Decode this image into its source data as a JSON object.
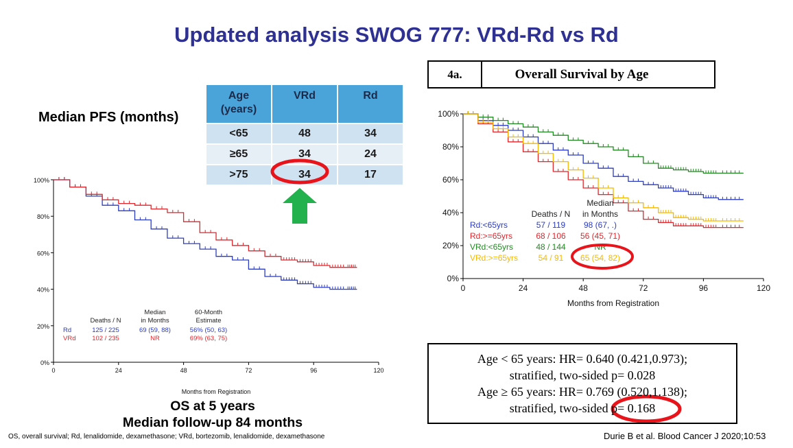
{
  "title": "Updated analysis SWOG 777: VRd-Rd vs Rd",
  "pfs_label": "Median PFS (months)",
  "pfs_table": {
    "headers": [
      "Age (years)",
      "VRd",
      "Rd"
    ],
    "rows": [
      [
        "<65",
        "48",
        "34"
      ],
      [
        "≥65",
        "34",
        "24"
      ],
      [
        ">75",
        "34",
        "17"
      ]
    ]
  },
  "os_caption": [
    "OS at 5 years",
    "Median follow-up 84 months"
  ],
  "footnote": "OS, overall survival; Rd, lenalidomide, dexamethasone; VRd, bortezomib, lenalidomide, dexamethasone",
  "citation": "Durie B et al. Blood Cancer J 2020;10:53",
  "fig_label": {
    "number": "4a.",
    "title": "Overall Survival by Age"
  },
  "hr_box": [
    "Age < 65 years:  HR=  0.640 (0.421,0.973);",
    "stratified, two-sided p= 0.028",
    "Age ≥ 65 years:  HR=  0.769 (0.520,1.138);",
    "stratified, two-sided p= 0.168"
  ],
  "colors": {
    "title": "#2e3192",
    "rd_blue": "#2b3bbf",
    "vrd_red": "#e0252b",
    "green": "#1f8a1f",
    "orange": "#f5b800",
    "arrow": "#22b14c",
    "highlight": "#e8141b"
  },
  "chart_data": [
    {
      "type": "line",
      "xlabel": "Months from Registration",
      "ylabel": "",
      "xlim": [
        0,
        120
      ],
      "ylim": [
        0,
        100
      ],
      "xticks": [
        "0",
        "24",
        "48",
        "72",
        "96",
        "120"
      ],
      "yticks": [
        "0%",
        "20%",
        "40%",
        "60%",
        "80%",
        "100%"
      ],
      "series": [
        {
          "name": "Rd",
          "color": "#2b3bbf",
          "x": [
            0,
            6,
            12,
            18,
            24,
            30,
            36,
            42,
            48,
            54,
            60,
            66,
            72,
            78,
            84,
            90,
            96,
            102,
            108,
            112
          ],
          "y": [
            100,
            96,
            91,
            86,
            83,
            78,
            73,
            68,
            65,
            62,
            58,
            56,
            51,
            47,
            45,
            43,
            41,
            40,
            40,
            40
          ]
        },
        {
          "name": "VRd",
          "color": "#e0252b",
          "x": [
            0,
            6,
            12,
            18,
            24,
            30,
            36,
            42,
            48,
            54,
            60,
            66,
            72,
            78,
            84,
            90,
            96,
            102,
            108,
            112
          ],
          "y": [
            100,
            96,
            92,
            89,
            87,
            86,
            84,
            82,
            77,
            71,
            67,
            64,
            61,
            58,
            56,
            55,
            53,
            52,
            52,
            52
          ]
        }
      ],
      "legend_table": {
        "headers": [
          "Deaths / N",
          "Median in Months",
          "60-Month Estimate"
        ],
        "header_lines": [
          [
            "Deaths / N"
          ],
          [
            "Median",
            "in Months"
          ],
          [
            "60-Month",
            "Estimate"
          ]
        ],
        "rows": [
          {
            "name": "Rd",
            "deaths": "125 / 225",
            "median": "69 (59, 88)",
            "estimate": "56% (50, 63)"
          },
          {
            "name": "VRd",
            "deaths": "102 / 235",
            "median": "NR",
            "estimate": "69% (63, 75)"
          }
        ]
      }
    },
    {
      "type": "line",
      "xlabel": "Months from Registration",
      "ylabel": "",
      "xlim": [
        0,
        120
      ],
      "ylim": [
        0,
        100
      ],
      "xticks": [
        "0",
        "24",
        "48",
        "72",
        "96",
        "120"
      ],
      "yticks": [
        "0%",
        "20%",
        "40%",
        "60%",
        "80%",
        "100%"
      ],
      "series": [
        {
          "name": "Rd:<65yrs",
          "color": "#2b3bbf",
          "x": [
            0,
            6,
            12,
            18,
            24,
            30,
            36,
            42,
            48,
            54,
            60,
            66,
            72,
            78,
            84,
            90,
            96,
            102,
            112
          ],
          "y": [
            100,
            96,
            93,
            90,
            86,
            82,
            78,
            75,
            70,
            67,
            62,
            59,
            57,
            55,
            53,
            51,
            49,
            48,
            48
          ]
        },
        {
          "name": "Rd:>=65yrs",
          "color": "#e0252b",
          "x": [
            0,
            6,
            12,
            18,
            24,
            30,
            36,
            42,
            48,
            54,
            60,
            66,
            72,
            78,
            84,
            90,
            96,
            102,
            112
          ],
          "y": [
            100,
            94,
            89,
            83,
            77,
            71,
            65,
            60,
            55,
            51,
            46,
            41,
            36,
            34,
            32,
            32,
            31,
            31,
            31
          ]
        },
        {
          "name": "VRd:<65yrs",
          "color": "#1f8a1f",
          "x": [
            0,
            6,
            12,
            18,
            24,
            30,
            36,
            42,
            48,
            54,
            60,
            66,
            72,
            78,
            84,
            90,
            96,
            102,
            112
          ],
          "y": [
            100,
            98,
            96,
            94,
            92,
            89,
            87,
            84,
            82,
            80,
            78,
            74,
            70,
            67,
            66,
            65,
            64,
            64,
            64
          ]
        },
        {
          "name": "VRd:>=65yrs",
          "color": "#f5b800",
          "x": [
            0,
            6,
            12,
            18,
            24,
            30,
            36,
            42,
            48,
            54,
            60,
            66,
            72,
            78,
            84,
            90,
            96,
            102,
            112
          ],
          "y": [
            100,
            95,
            91,
            86,
            82,
            76,
            71,
            66,
            61,
            55,
            49,
            46,
            43,
            40,
            37,
            36,
            35,
            35,
            35
          ]
        }
      ],
      "legend_table": {
        "headers": [
          "Deaths / N",
          "Median in Months"
        ],
        "header_lines": [
          [
            "Deaths / N"
          ],
          [
            "Median",
            "in Months"
          ]
        ],
        "rows": [
          {
            "name": "Rd:<65yrs",
            "deaths": "57 / 119",
            "median": "98 (67, .)"
          },
          {
            "name": "Rd:>=65yrs",
            "deaths": "68 / 106",
            "median": "56 (45, 71)"
          },
          {
            "name": "VRd:<65yrs",
            "deaths": "48 / 144",
            "median": "NR"
          },
          {
            "name": "VRd:>=65yrs",
            "deaths": "54 / 91",
            "median": "65 (54, 82)"
          }
        ]
      }
    }
  ]
}
